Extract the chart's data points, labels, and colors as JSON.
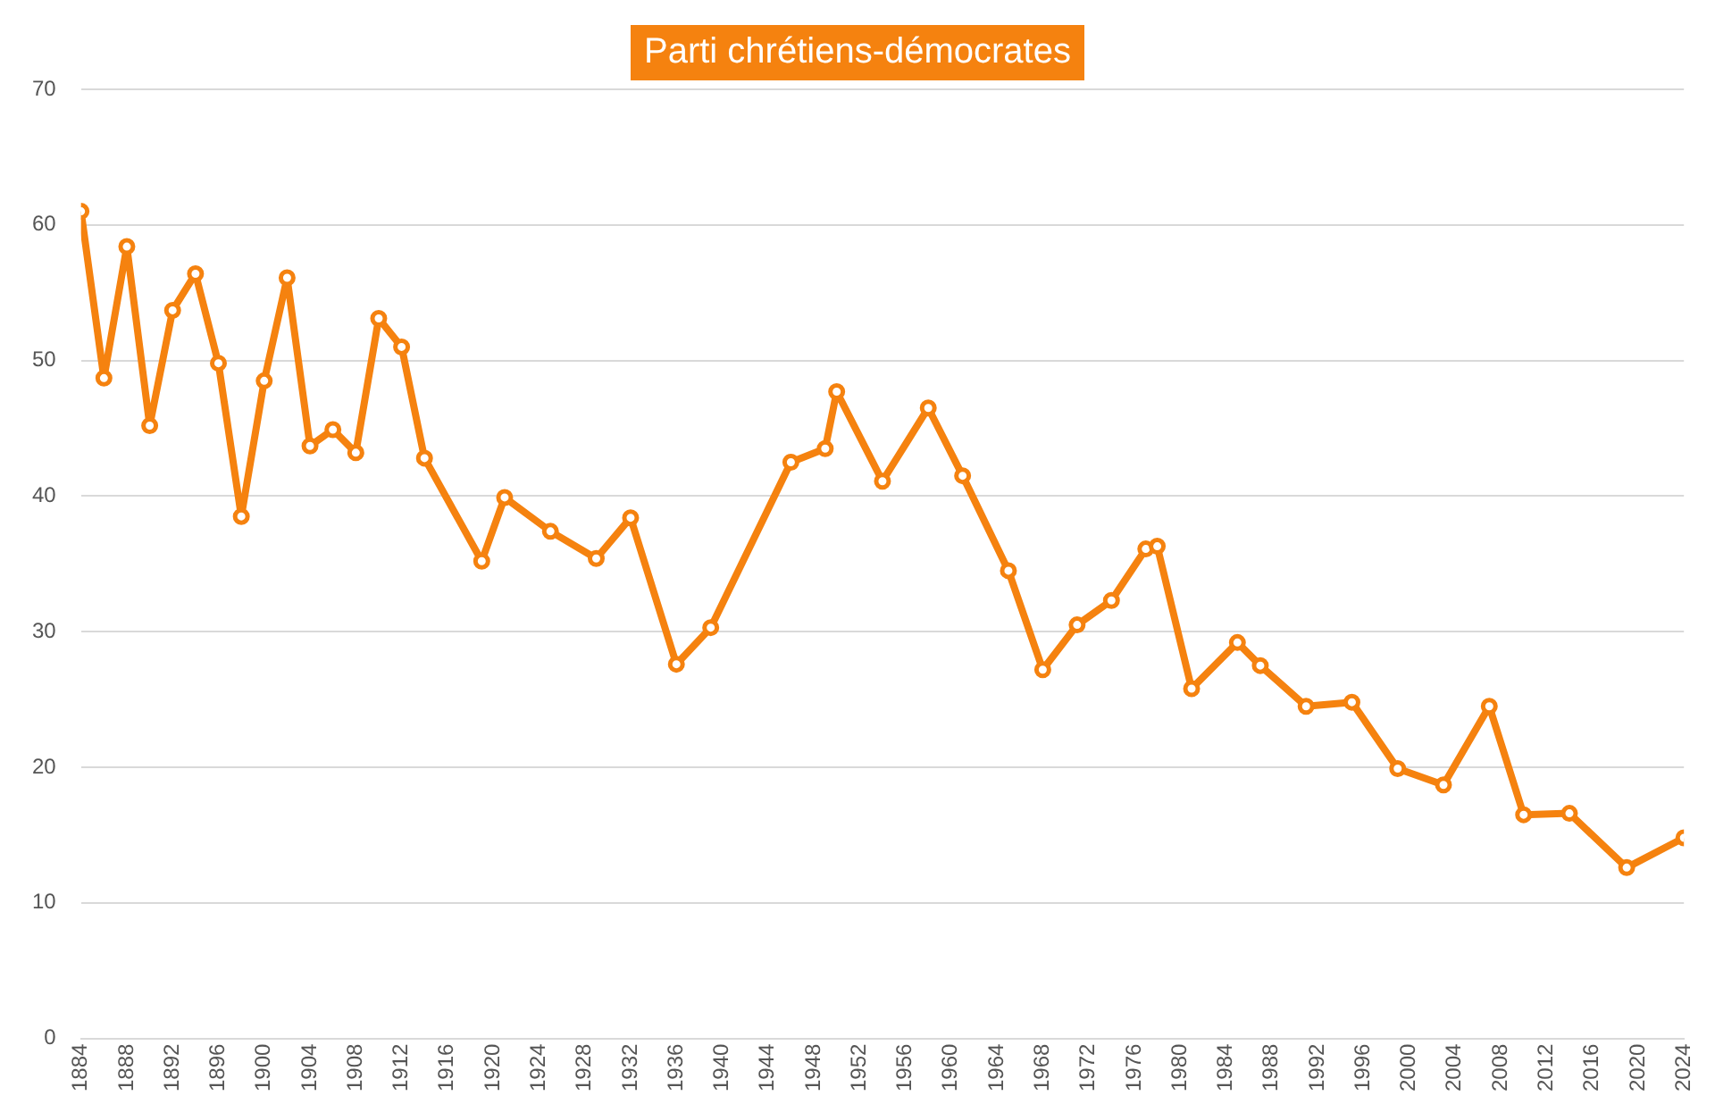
{
  "chart_data": {
    "type": "line",
    "title": "Parti chrétiens-démocrates",
    "x": [
      1884,
      1886,
      1888,
      1890,
      1892,
      1894,
      1896,
      1898,
      1900,
      1902,
      1904,
      1906,
      1908,
      1910,
      1912,
      1914,
      1919,
      1921,
      1925,
      1929,
      1932,
      1936,
      1939,
      1946,
      1949,
      1950,
      1954,
      1958,
      1961,
      1965,
      1968,
      1971,
      1974,
      1977,
      1978,
      1981,
      1985,
      1987,
      1991,
      1995,
      1999,
      2003,
      2007,
      2010,
      2014,
      2019,
      2024
    ],
    "series": [
      {
        "color": "#f5820f",
        "values": [
          61.0,
          48.7,
          58.4,
          45.2,
          53.7,
          56.4,
          49.8,
          38.5,
          48.5,
          56.1,
          43.7,
          44.9,
          43.2,
          53.1,
          51.0,
          42.8,
          35.2,
          39.9,
          37.4,
          35.4,
          38.4,
          27.6,
          30.3,
          42.5,
          43.5,
          47.7,
          41.1,
          46.5,
          41.5,
          34.5,
          27.2,
          30.5,
          32.3,
          36.1,
          36.3,
          25.8,
          29.2,
          27.5,
          24.5,
          24.8,
          19.9,
          18.7,
          24.5,
          16.5,
          16.6,
          12.6,
          14.8
        ]
      }
    ],
    "xlim": [
      1884,
      2024
    ],
    "xticks": [
      1884,
      1888,
      1892,
      1896,
      1900,
      1904,
      1908,
      1912,
      1916,
      1920,
      1924,
      1928,
      1932,
      1936,
      1940,
      1944,
      1948,
      1952,
      1956,
      1960,
      1964,
      1968,
      1972,
      1976,
      1980,
      1984,
      1988,
      1992,
      1996,
      2000,
      2004,
      2008,
      2012,
      2016,
      2020,
      2024
    ],
    "ylim": [
      0,
      70
    ],
    "yticks": [
      0,
      10,
      20,
      30,
      40,
      50,
      60,
      70
    ],
    "grid": "y",
    "legend": false,
    "marker": "circle",
    "line_style": "solid"
  }
}
